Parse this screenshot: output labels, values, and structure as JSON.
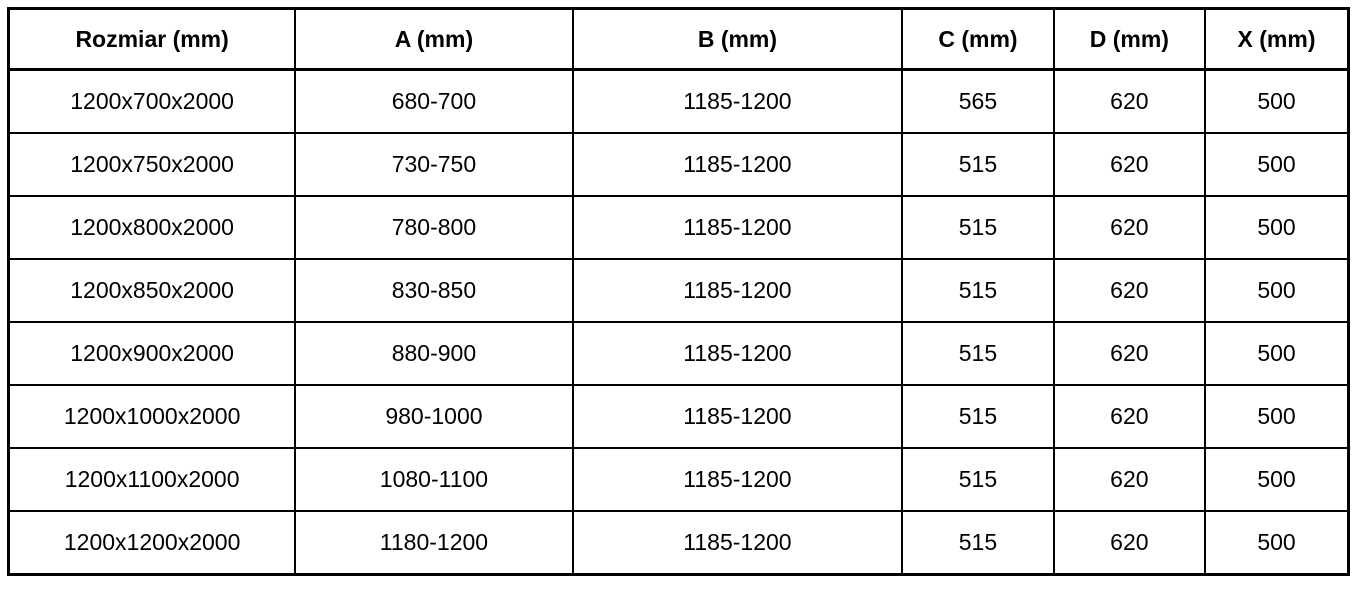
{
  "table": {
    "headers": [
      "Rozmiar (mm)",
      "A (mm)",
      "B (mm)",
      "C (mm)",
      "D (mm)",
      "X (mm)"
    ],
    "rows": [
      [
        "1200x700x2000",
        "680-700",
        "1185-1200",
        "565",
        "620",
        "500"
      ],
      [
        "1200x750x2000",
        "730-750",
        "1185-1200",
        "515",
        "620",
        "500"
      ],
      [
        "1200x800x2000",
        "780-800",
        "1185-1200",
        "515",
        "620",
        "500"
      ],
      [
        "1200x850x2000",
        "830-850",
        "1185-1200",
        "515",
        "620",
        "500"
      ],
      [
        "1200x900x2000",
        "880-900",
        "1185-1200",
        "515",
        "620",
        "500"
      ],
      [
        "1200x1000x2000",
        "980-1000",
        "1185-1200",
        "515",
        "620",
        "500"
      ],
      [
        "1200x1100x2000",
        "1080-1100",
        "1185-1200",
        "515",
        "620",
        "500"
      ],
      [
        "1200x1200x2000",
        "1180-1200",
        "1185-1200",
        "515",
        "620",
        "500"
      ]
    ],
    "colors": {
      "border": "#000000",
      "text": "#000000",
      "background": "#ffffff"
    }
  }
}
